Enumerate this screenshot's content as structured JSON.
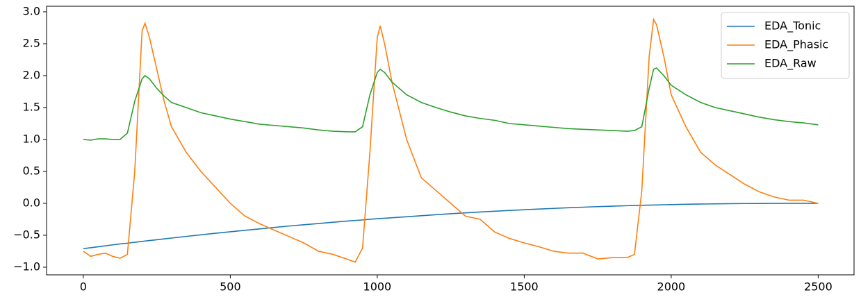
{
  "chart_data": {
    "type": "line",
    "x": [
      0,
      25,
      50,
      75,
      100,
      125,
      150,
      175,
      200,
      210,
      225,
      250,
      275,
      300,
      350,
      400,
      450,
      500,
      550,
      600,
      650,
      700,
      750,
      800,
      850,
      900,
      925,
      950,
      975,
      1000,
      1010,
      1025,
      1050,
      1100,
      1150,
      1200,
      1250,
      1300,
      1350,
      1400,
      1450,
      1500,
      1550,
      1600,
      1650,
      1700,
      1750,
      1800,
      1850,
      1875,
      1900,
      1925,
      1940,
      1950,
      1975,
      2000,
      2050,
      2100,
      2150,
      2200,
      2250,
      2300,
      2350,
      2400,
      2450,
      2500
    ],
    "series": [
      {
        "name": "EDA_Tonic",
        "color": "#1f77b4",
        "values": [
          -0.71,
          -0.695,
          -0.68,
          -0.665,
          -0.65,
          -0.636,
          -0.624,
          -0.61,
          -0.596,
          -0.59,
          -0.583,
          -0.57,
          -0.557,
          -0.544,
          -0.518,
          -0.493,
          -0.468,
          -0.445,
          -0.422,
          -0.4,
          -0.377,
          -0.355,
          -0.335,
          -0.316,
          -0.296,
          -0.277,
          -0.268,
          -0.26,
          -0.25,
          -0.24,
          -0.237,
          -0.233,
          -0.225,
          -0.21,
          -0.194,
          -0.178,
          -0.163,
          -0.149,
          -0.136,
          -0.123,
          -0.111,
          -0.1,
          -0.089,
          -0.079,
          -0.069,
          -0.06,
          -0.052,
          -0.044,
          -0.037,
          -0.034,
          -0.031,
          -0.028,
          -0.026,
          -0.025,
          -0.022,
          -0.02,
          -0.015,
          -0.011,
          -0.008,
          -0.005,
          -0.003,
          -0.002,
          -0.001,
          0,
          0,
          0
        ]
      },
      {
        "name": "EDA_Phasic",
        "color": "#ff7f0e",
        "values": [
          -0.75,
          -0.83,
          -0.8,
          -0.78,
          -0.83,
          -0.86,
          -0.8,
          0.5,
          2.7,
          2.82,
          2.6,
          2.1,
          1.6,
          1.2,
          0.8,
          0.5,
          0.25,
          0.0,
          -0.2,
          -0.32,
          -0.42,
          -0.52,
          -0.62,
          -0.75,
          -0.8,
          -0.88,
          -0.92,
          -0.7,
          0.8,
          2.6,
          2.78,
          2.5,
          1.9,
          1.0,
          0.4,
          0.2,
          0.0,
          -0.2,
          -0.25,
          -0.45,
          -0.55,
          -0.62,
          -0.68,
          -0.75,
          -0.78,
          -0.78,
          -0.87,
          -0.85,
          -0.85,
          -0.8,
          0.2,
          2.3,
          2.88,
          2.8,
          2.3,
          1.7,
          1.2,
          0.8,
          0.6,
          0.45,
          0.3,
          0.18,
          0.1,
          0.05,
          0.05,
          0.0
        ]
      },
      {
        "name": "EDA_Raw",
        "color": "#2ca02c",
        "values": [
          1.0,
          0.99,
          1.01,
          1.01,
          1.0,
          1.0,
          1.1,
          1.6,
          1.95,
          2.0,
          1.95,
          1.8,
          1.68,
          1.58,
          1.5,
          1.42,
          1.37,
          1.32,
          1.28,
          1.24,
          1.22,
          1.2,
          1.18,
          1.15,
          1.13,
          1.12,
          1.12,
          1.2,
          1.7,
          2.05,
          2.1,
          2.05,
          1.9,
          1.7,
          1.58,
          1.5,
          1.43,
          1.37,
          1.33,
          1.3,
          1.25,
          1.23,
          1.21,
          1.19,
          1.17,
          1.16,
          1.15,
          1.14,
          1.13,
          1.14,
          1.2,
          1.8,
          2.1,
          2.12,
          2.0,
          1.85,
          1.7,
          1.58,
          1.5,
          1.45,
          1.4,
          1.35,
          1.31,
          1.28,
          1.26,
          1.23
        ]
      }
    ],
    "xlim": [
      -125,
      2622
    ],
    "xticks": [
      0,
      500,
      1000,
      1500,
      2000,
      2500
    ],
    "ylim": [
      -1.12,
      3.087
    ],
    "yticks": [
      {
        "value": -1.0,
        "label": "−1.0"
      },
      {
        "value": -0.5,
        "label": "−0.5"
      },
      {
        "value": 0.0,
        "label": "0.0"
      },
      {
        "value": 0.5,
        "label": "0.5"
      },
      {
        "value": 1.0,
        "label": "1.0"
      },
      {
        "value": 1.5,
        "label": "1.5"
      },
      {
        "value": 2.0,
        "label": "2.0"
      },
      {
        "value": 2.5,
        "label": "2.5"
      },
      {
        "value": 3.0,
        "label": "3.0"
      }
    ],
    "legend": "upper right"
  }
}
